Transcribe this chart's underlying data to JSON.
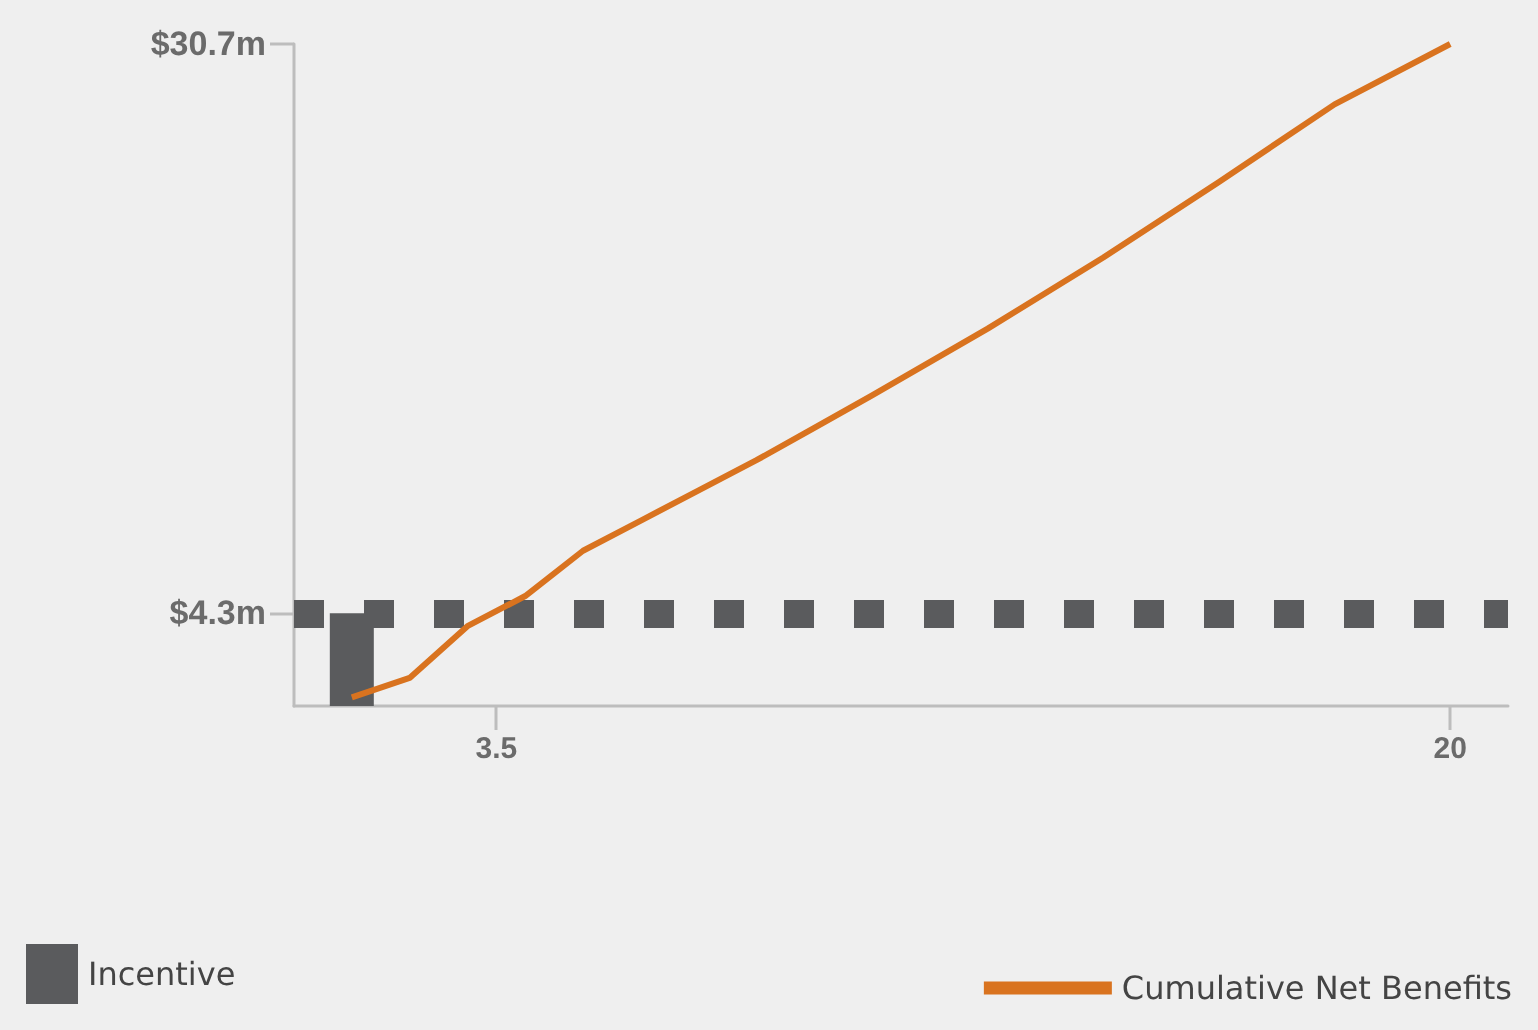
{
  "chart_data": {
    "type": "line",
    "series": [
      {
        "name": "Incentive",
        "type": "bar",
        "color": "#5a5b5d",
        "x": [
          1
        ],
        "values": [
          4.3
        ]
      },
      {
        "name": "Cumulative Net Benefits",
        "color": "#d9731f",
        "x": [
          1,
          2,
          3,
          4,
          5,
          6,
          7,
          8,
          9,
          10,
          12,
          14,
          16,
          18,
          20
        ],
        "values": [
          0.4,
          1.3,
          3.7,
          5.1,
          7.2,
          8.6,
          10.0,
          11.4,
          12.9,
          14.4,
          17.5,
          20.8,
          24.3,
          27.9,
          30.7
        ]
      }
    ],
    "xlim": [
      0,
      21
    ],
    "xticks": [
      3.5,
      20
    ],
    "ylim": [
      0,
      30.7
    ],
    "yticks": [
      {
        "value": 4.3,
        "label": "$4.3m"
      },
      {
        "value": 30.7,
        "label": "$30.7m"
      }
    ],
    "ref_lines": [
      {
        "axis": "y",
        "value": 4.3,
        "color": "#5a5b5d",
        "line_style": "dotted"
      }
    ],
    "grid": false,
    "legend": "bottom",
    "marker": "none"
  }
}
